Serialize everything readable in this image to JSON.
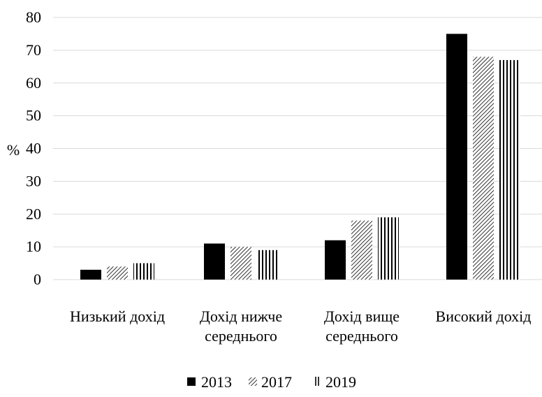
{
  "chart_data": {
    "type": "bar",
    "title": "",
    "xlabel": "",
    "ylabel": "%",
    "ylim": [
      0,
      80
    ],
    "yticks": [
      0,
      10,
      20,
      30,
      40,
      50,
      60,
      70,
      80
    ],
    "grid": true,
    "legend_position": "bottom",
    "categories": [
      [
        "Низький дохід"
      ],
      [
        "Дохід нижче",
        "середнього"
      ],
      [
        "Дохід вище",
        "середнього"
      ],
      [
        "Високий дохід"
      ]
    ],
    "series": [
      {
        "name": "2013",
        "pattern": "solid",
        "color": "#000000",
        "values": [
          3,
          11,
          12,
          75
        ]
      },
      {
        "name": "2017",
        "pattern": "diagonal",
        "color": "#000000",
        "values": [
          4,
          10,
          18,
          68
        ]
      },
      {
        "name": "2019",
        "pattern": "vertical",
        "color": "#000000",
        "values": [
          5,
          9,
          19,
          67
        ]
      }
    ]
  }
}
